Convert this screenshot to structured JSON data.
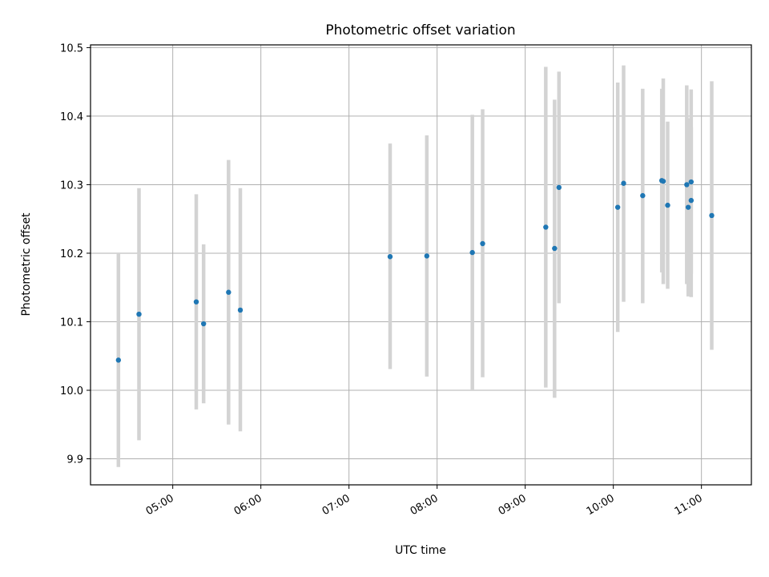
{
  "chart_data": {
    "type": "scatter",
    "title": "Photometric offset variation",
    "xlabel": "UTC time",
    "ylabel": "Photometric offset",
    "x_unit": "UTC time of day (HH:MM)",
    "xlim": [
      "04:04",
      "11:34"
    ],
    "ylim": [
      9.862,
      10.504
    ],
    "xticks": [
      "05:00",
      "06:00",
      "07:00",
      "08:00",
      "09:00",
      "10:00",
      "11:00"
    ],
    "yticks": [
      9.9,
      10.0,
      10.1,
      10.2,
      10.3,
      10.4,
      10.5
    ],
    "grid": true,
    "legend": "none",
    "point_color": "#1f77b4",
    "errorbar_color": "#d3d3d3",
    "series": [
      {
        "points": [
          {
            "x": "04:23",
            "y": 10.044,
            "ylow": 9.888,
            "yhigh": 10.2
          },
          {
            "x": "04:37",
            "y": 10.111,
            "ylow": 9.927,
            "yhigh": 10.295
          },
          {
            "x": "05:16",
            "y": 10.129,
            "ylow": 9.972,
            "yhigh": 10.286
          },
          {
            "x": "05:21",
            "y": 10.097,
            "ylow": 9.981,
            "yhigh": 10.213
          },
          {
            "x": "05:38",
            "y": 10.143,
            "ylow": 9.95,
            "yhigh": 10.336
          },
          {
            "x": "05:46",
            "y": 10.117,
            "ylow": 9.94,
            "yhigh": 10.295
          },
          {
            "x": "07:28",
            "y": 10.195,
            "ylow": 10.031,
            "yhigh": 10.36
          },
          {
            "x": "07:53",
            "y": 10.196,
            "ylow": 10.02,
            "yhigh": 10.372
          },
          {
            "x": "08:24",
            "y": 10.201,
            "ylow": 10.0,
            "yhigh": 10.402
          },
          {
            "x": "08:31",
            "y": 10.214,
            "ylow": 10.019,
            "yhigh": 10.41
          },
          {
            "x": "09:14",
            "y": 10.238,
            "ylow": 10.004,
            "yhigh": 10.472
          },
          {
            "x": "09:20",
            "y": 10.207,
            "ylow": 9.989,
            "yhigh": 10.424
          },
          {
            "x": "09:23",
            "y": 10.296,
            "ylow": 10.127,
            "yhigh": 10.465
          },
          {
            "x": "10:03",
            "y": 10.267,
            "ylow": 10.085,
            "yhigh": 10.449
          },
          {
            "x": "10:07",
            "y": 10.302,
            "ylow": 10.129,
            "yhigh": 10.474
          },
          {
            "x": "10:20",
            "y": 10.284,
            "ylow": 10.127,
            "yhigh": 10.44
          },
          {
            "x": "10:33",
            "y": 10.306,
            "ylow": 10.172,
            "yhigh": 10.44
          },
          {
            "x": "10:34",
            "y": 10.305,
            "ylow": 10.155,
            "yhigh": 10.455
          },
          {
            "x": "10:37",
            "y": 10.27,
            "ylow": 10.148,
            "yhigh": 10.392
          },
          {
            "x": "10:50",
            "y": 10.3,
            "ylow": 10.155,
            "yhigh": 10.445
          },
          {
            "x": "10:51",
            "y": 10.267,
            "ylow": 10.137,
            "yhigh": 10.397
          },
          {
            "x": "10:53",
            "y": 10.277,
            "ylow": 10.17,
            "yhigh": 10.384
          },
          {
            "x": "10:53",
            "y": 10.304,
            "ylow": 10.136,
            "yhigh": 10.439
          },
          {
            "x": "11:07",
            "y": 10.255,
            "ylow": 10.059,
            "yhigh": 10.451
          }
        ]
      }
    ]
  }
}
